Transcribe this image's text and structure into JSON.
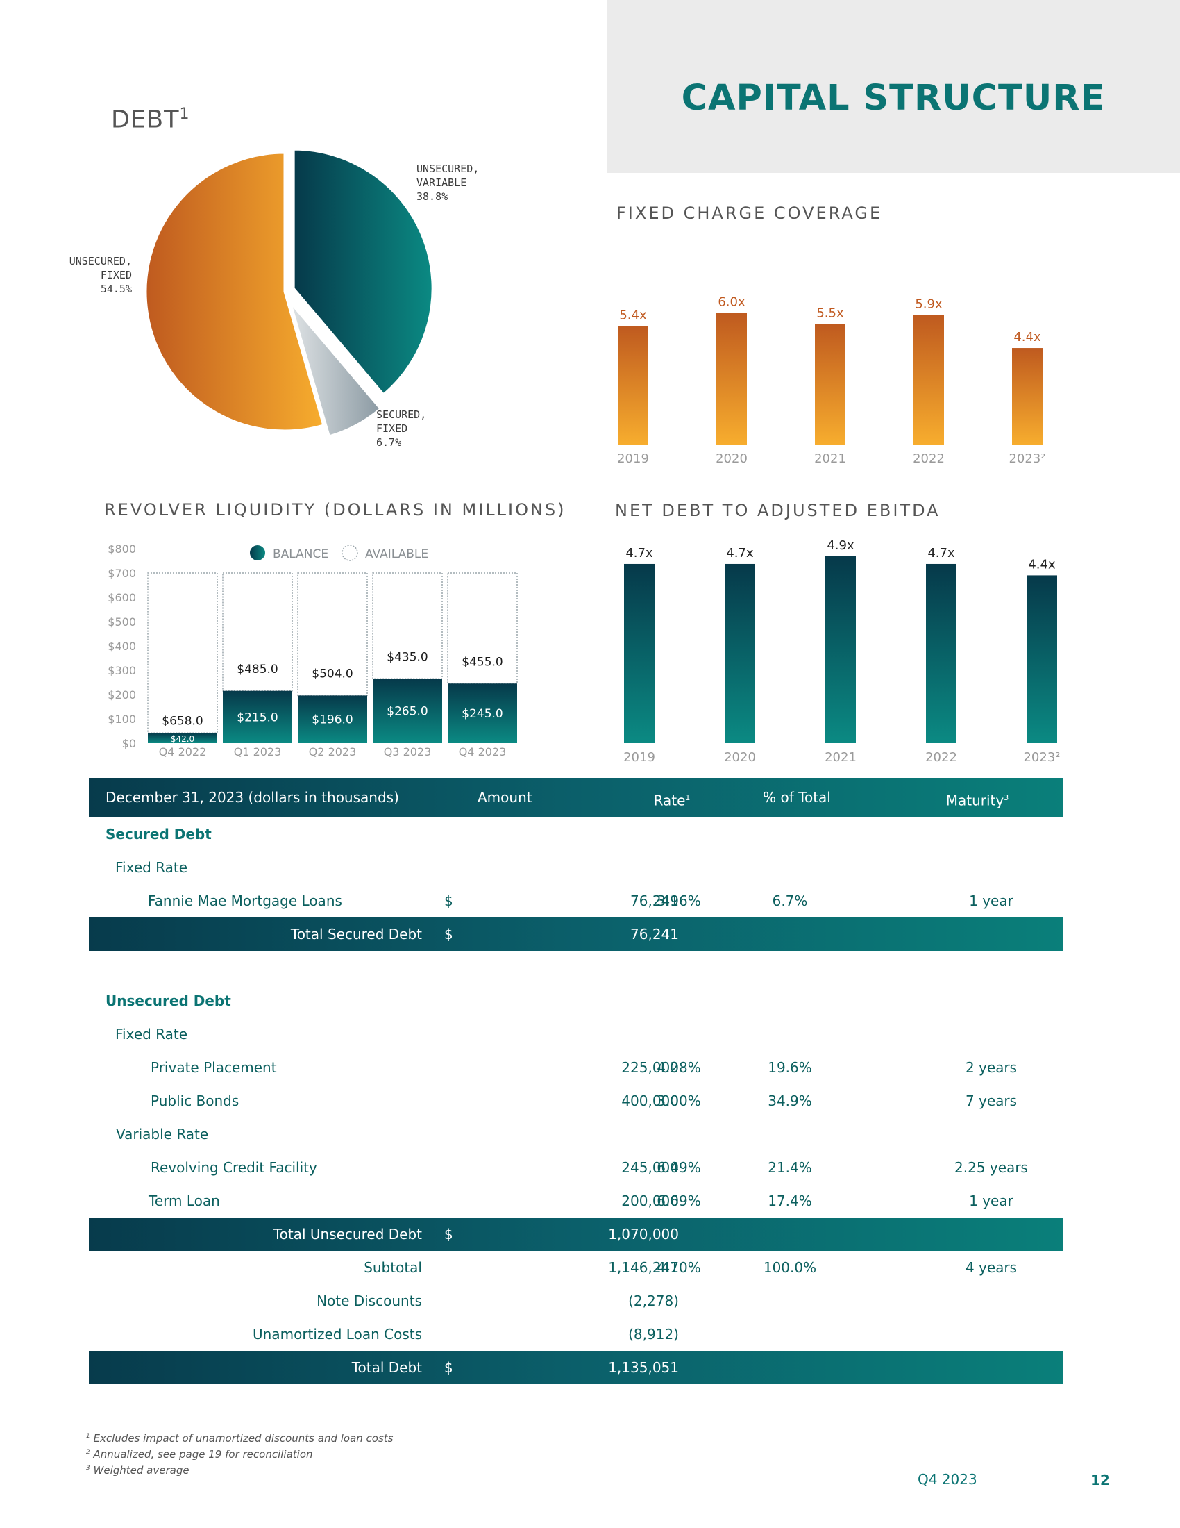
{
  "header": {
    "title": "CAPITAL STRUCTURE"
  },
  "debt_pie": {
    "title": "DEBT",
    "title_sup": "1",
    "labels": {
      "unsecured_variable": "UNSECURED,\nVARIABLE\n38.8%",
      "unsecured_fixed": "UNSECURED,\nFIXED\n54.5%",
      "secured_fixed": "SECURED,\nFIXED\n6.7%"
    }
  },
  "fixed_charge": {
    "title": "FIXED CHARGE COVERAGE"
  },
  "revolver": {
    "title": "REVOLVER LIQUIDITY (DOLLARS IN MILLIONS)",
    "legend_balance": "BALANCE",
    "legend_available": "AVAILABLE"
  },
  "net_debt": {
    "title": "NET DEBT TO ADJUSTED EBITDA"
  },
  "chart_data": [
    {
      "type": "bar",
      "title": "FIXED CHARGE COVERAGE",
      "categories": [
        "2019",
        "2020",
        "2021",
        "2022",
        "2023²"
      ],
      "values": [
        5.4,
        6.0,
        5.5,
        5.9,
        4.4
      ],
      "value_labels": [
        "5.4x",
        "6.0x",
        "5.5x",
        "5.9x",
        "4.4x"
      ],
      "ylim": [
        0,
        7.6
      ],
      "colors": {
        "top": "#bf5a1f",
        "bottom": "#f7ad2e",
        "label": "#c0591f"
      }
    },
    {
      "type": "bar",
      "title": "NET DEBT TO ADJUSTED EBITDA",
      "categories": [
        "2019",
        "2020",
        "2021",
        "2022",
        "2023²"
      ],
      "values": [
        4.7,
        4.7,
        4.9,
        4.7,
        4.4
      ],
      "value_labels": [
        "4.7x",
        "4.7x",
        "4.9x",
        "4.7x",
        "4.4x"
      ],
      "ylim": [
        0,
        5.1
      ],
      "colors": {
        "top": "#06394a",
        "bottom": "#0b8a83",
        "label": "#222222"
      }
    },
    {
      "type": "bar",
      "stacked": true,
      "title": "REVOLVER LIQUIDITY (DOLLARS IN MILLIONS)",
      "categories": [
        "Q4 2022",
        "Q1 2023",
        "Q2 2023",
        "Q3 2023",
        "Q4 2023"
      ],
      "y_ticks": [
        "$0",
        "$100",
        "$200",
        "$300",
        "$400",
        "$500",
        "$600",
        "$700",
        "$800"
      ],
      "ylim": [
        0,
        800
      ],
      "series": [
        {
          "name": "BALANCE",
          "values": [
            42.0,
            215.0,
            196.0,
            265.0,
            245.0
          ],
          "labels": [
            "$42.0",
            "$215.0",
            "$196.0",
            "$265.0",
            "$245.0"
          ]
        },
        {
          "name": "AVAILABLE",
          "values": [
            658.0,
            485.0,
            504.0,
            435.0,
            455.0
          ],
          "labels": [
            "$658.0",
            "$485.0",
            "$504.0",
            "$435.0",
            "$455.0"
          ]
        }
      ],
      "colors": {
        "balance_top": "#06394a",
        "balance_bottom": "#0b8a83",
        "available_border": "#9aa5ab"
      }
    },
    {
      "type": "pie",
      "title": "DEBT",
      "slices": [
        {
          "label": "UNSECURED, VARIABLE",
          "value": 38.8
        },
        {
          "label": "SECURED, FIXED",
          "value": 6.7
        },
        {
          "label": "UNSECURED, FIXED",
          "value": 54.5
        }
      ]
    }
  ],
  "table": {
    "header": {
      "label": "December 31, 2023 (dollars in thousands)",
      "amount": "Amount",
      "rate": "Rate",
      "rate_sup": "1",
      "pct": "% of Total",
      "maturity": "Maturity",
      "maturity_sup": "3"
    },
    "secured_heading": "Secured Debt",
    "secured_fixed": "Fixed Rate",
    "fannie": {
      "label": "Fannie Mae Mortgage Loans",
      "dollar": "$",
      "amount": "76,241",
      "rate": "3.96%",
      "pct": "6.7%",
      "maturity": "1 year"
    },
    "total_secured": {
      "label": "Total Secured Debt",
      "dollar": "$",
      "amount": "76,241"
    },
    "unsecured_heading": "Unsecured Debt",
    "unsecured_fixed": "Fixed Rate",
    "private": {
      "label": "Private Placement",
      "amount": "225,000",
      "rate": "4.28%",
      "pct": "19.6%",
      "maturity": "2 years"
    },
    "public": {
      "label": "Public Bonds",
      "amount": "400,000",
      "rate": "3.00%",
      "pct": "34.9%",
      "maturity": "7 years"
    },
    "unsecured_variable": "Variable Rate",
    "revolving": {
      "label": "Revolving Credit Facility",
      "amount": "245,000",
      "rate": "6.49%",
      "pct": "21.4%",
      "maturity": "2.25 years"
    },
    "term": {
      "label": "Term Loan",
      "amount": "200,000",
      "rate": "6.69%",
      "pct": "17.4%",
      "maturity": "1 year"
    },
    "total_unsecured": {
      "label": "Total Unsecured Debt",
      "dollar": "$",
      "amount": "1,070,000"
    },
    "subtotal": {
      "label": "Subtotal",
      "amount": "1,146,241",
      "rate": "4.70%",
      "pct": "100.0%",
      "maturity": "4 years"
    },
    "note_discounts": {
      "label": "Note Discounts",
      "amount": "(2,278)"
    },
    "loan_costs": {
      "label": "Unamortized Loan Costs",
      "amount": "(8,912)"
    },
    "total_debt": {
      "label": "Total Debt",
      "dollar": "$",
      "amount": "1,135,051"
    }
  },
  "footnotes": {
    "f1_sup": "1",
    "f1": "Excludes impact of unamortized discounts and loan costs",
    "f2_sup": "2",
    "f2": "Annualized, see page 19 for reconciliation",
    "f3_sup": "3",
    "f3": "Weighted average"
  },
  "footer": {
    "period": "Q4 2023",
    "page": "12"
  }
}
